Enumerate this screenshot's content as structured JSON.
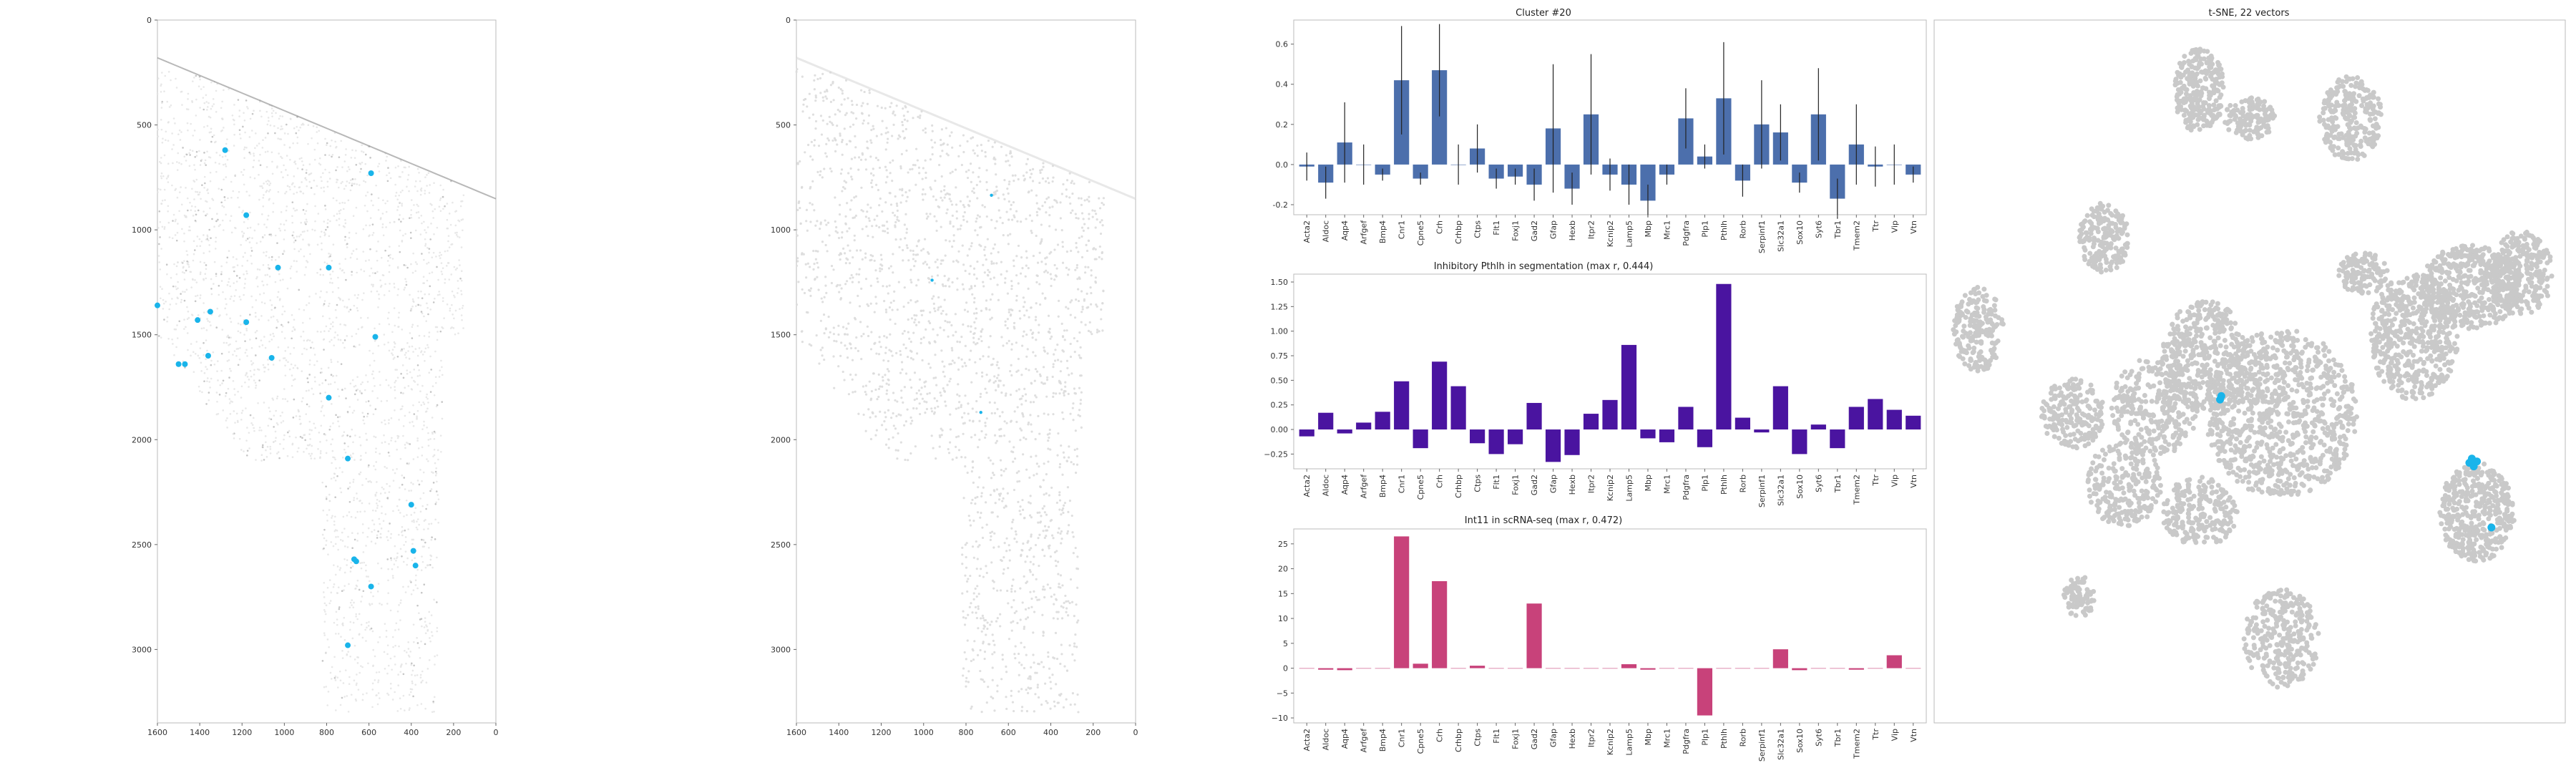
{
  "colors": {
    "highlight": "#19b4ea",
    "tissue": "#cfcfcf",
    "cluster_bar": "#4c6fac",
    "seg_bar": "#4a14a0",
    "scrna_bar": "#c8427a",
    "tsne_point": "#c9c9c9",
    "axes": "#bbbbbb"
  },
  "genes": [
    "Acta2",
    "Aldoc",
    "Aqp4",
    "Arfgef",
    "Bmp4",
    "Cnr1",
    "Cpne5",
    "Crh",
    "Crhbp",
    "Ctps",
    "Flt1",
    "Foxj1",
    "Gad2",
    "Gfap",
    "Hexb",
    "Itpr2",
    "Kcnip2",
    "Lamp5",
    "Mbp",
    "Mrc1",
    "Pdgfra",
    "Plp1",
    "Pthlh",
    "Rorb",
    "Serpinf1",
    "Slc32a1",
    "Sox10",
    "Syt6",
    "Tbr1",
    "Tmem2",
    "Ttr",
    "Vip",
    "Vtn"
  ],
  "chart_data": [
    {
      "type": "scatter",
      "panel": "spatial-map-cluster",
      "x_ticks": [
        1600,
        1400,
        1200,
        1000,
        800,
        600,
        400,
        200,
        0
      ],
      "y_ticks": [
        0,
        500,
        1000,
        1500,
        2000,
        2500,
        3000
      ],
      "xlim": [
        1600,
        0
      ],
      "ylim": [
        3350,
        0
      ],
      "highlighted_cells": [
        [
          1280,
          620
        ],
        [
          590,
          730
        ],
        [
          1180,
          930
        ],
        [
          1030,
          1180
        ],
        [
          790,
          1180
        ],
        [
          1600,
          1360
        ],
        [
          1410,
          1430
        ],
        [
          1350,
          1390
        ],
        [
          1180,
          1440
        ],
        [
          570,
          1510
        ],
        [
          1360,
          1600
        ],
        [
          1060,
          1610
        ],
        [
          1500,
          1640
        ],
        [
          1470,
          1640
        ],
        [
          790,
          1800
        ],
        [
          700,
          2090
        ],
        [
          400,
          2310
        ],
        [
          660,
          2580
        ],
        [
          670,
          2570
        ],
        [
          390,
          2530
        ],
        [
          380,
          2600
        ],
        [
          590,
          2700
        ],
        [
          700,
          2980
        ]
      ]
    },
    {
      "type": "scatter",
      "panel": "spatial-map-segmentation",
      "x_ticks": [
        1600,
        1400,
        1200,
        1000,
        800,
        600,
        400,
        200,
        0
      ],
      "y_ticks": [
        0,
        500,
        1000,
        1500,
        2000,
        2500,
        3000
      ],
      "xlim": [
        1600,
        0
      ],
      "ylim": [
        3350,
        0
      ],
      "highlighted_cells": [
        [
          680,
          835
        ],
        [
          960,
          1240
        ],
        [
          730,
          1870
        ]
      ]
    },
    {
      "type": "bar",
      "title": "Cluster #20",
      "yticks": [
        -0.2,
        0.0,
        0.2,
        0.4,
        0.6
      ],
      "ylim": [
        -0.25,
        0.72
      ],
      "values": [
        -0.01,
        -0.09,
        0.11,
        0.0,
        -0.05,
        0.42,
        -0.07,
        0.47,
        0.0,
        0.08,
        -0.07,
        -0.06,
        -0.1,
        0.18,
        -0.12,
        0.25,
        -0.05,
        -0.1,
        -0.18,
        -0.05,
        0.23,
        0.04,
        0.33,
        -0.08,
        0.2,
        0.16,
        -0.09,
        0.25,
        -0.17,
        0.1,
        -0.01,
        0.0,
        -0.05
      ],
      "errors": [
        0.07,
        0.08,
        0.2,
        0.1,
        0.03,
        0.27,
        0.03,
        0.23,
        0.1,
        0.12,
        0.05,
        0.04,
        0.08,
        0.32,
        0.08,
        0.3,
        0.08,
        0.1,
        0.08,
        0.05,
        0.15,
        0.06,
        0.28,
        0.08,
        0.22,
        0.14,
        0.05,
        0.23,
        0.1,
        0.2,
        0.1,
        0.1,
        0.04
      ]
    },
    {
      "type": "bar",
      "title": "Inhibitory Pthlh in segmentation (max r, 0.444)",
      "yticks": [
        -0.25,
        0.0,
        0.25,
        0.5,
        0.75,
        1.0,
        1.25,
        1.5
      ],
      "ylabels": [
        "−0.25",
        "0.00",
        "0.25",
        "0.50",
        "0.75",
        "1.00",
        "1.25",
        "1.50"
      ],
      "ylim": [
        -0.4,
        1.58
      ],
      "values": [
        -0.07,
        0.17,
        -0.04,
        0.07,
        0.18,
        0.49,
        -0.19,
        0.69,
        0.44,
        -0.14,
        -0.25,
        -0.15,
        0.27,
        -0.33,
        -0.26,
        0.16,
        0.3,
        0.86,
        -0.09,
        -0.13,
        0.23,
        -0.18,
        1.48,
        0.12,
        -0.03,
        0.44,
        -0.25,
        0.05,
        -0.19,
        0.23,
        0.31,
        0.2,
        0.14
      ]
    },
    {
      "type": "bar",
      "title": "Int11 in scRNA-seq (max r, 0.472)",
      "yticks": [
        -10,
        -5,
        0,
        5,
        10,
        15,
        20,
        25
      ],
      "ylabels": [
        "−10",
        "−5",
        "0",
        "5",
        "10",
        "15",
        "20",
        "25"
      ],
      "ylim": [
        -11,
        28
      ],
      "values": [
        0.0,
        -0.3,
        -0.4,
        0.0,
        0.0,
        26.5,
        0.9,
        17.5,
        0.0,
        0.5,
        0.0,
        0.0,
        13.0,
        0.0,
        0.0,
        0.0,
        0.0,
        0.8,
        -0.3,
        0.0,
        0.0,
        -9.5,
        0.0,
        0.0,
        0.0,
        3.8,
        -0.4,
        0.0,
        0.0,
        -0.3,
        0.0,
        2.6,
        0.0
      ]
    },
    {
      "type": "scatter",
      "panel": "tsne",
      "title": "t-SNE, 22 vectors",
      "highlight_spots": [
        [
          0.455,
          0.535
        ],
        [
          0.453,
          0.54
        ],
        [
          0.848,
          0.63
        ],
        [
          0.855,
          0.635
        ],
        [
          0.86,
          0.628
        ],
        [
          0.852,
          0.624
        ],
        [
          0.883,
          0.722
        ]
      ]
    }
  ]
}
